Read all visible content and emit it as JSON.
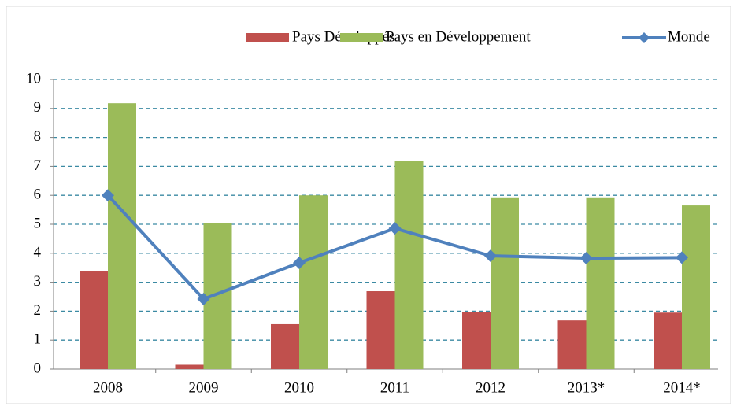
{
  "chart_data": {
    "type": "bar",
    "categories": [
      "2008",
      "2009",
      "2010",
      "2011",
      "2012",
      "2013*",
      "2014*"
    ],
    "series": [
      {
        "name": "Pays Développés",
        "color": "#c0504d",
        "type": "bar",
        "values": [
          3.37,
          0.15,
          1.55,
          2.69,
          1.96,
          1.68,
          1.95
        ]
      },
      {
        "name": "Pays en Développement",
        "color": "#9bbb59",
        "type": "bar",
        "values": [
          9.18,
          5.05,
          6.0,
          7.2,
          5.93,
          5.93,
          5.65
        ]
      },
      {
        "name": "Monde",
        "color": "#4f81bd",
        "type": "line",
        "values": [
          6.0,
          2.42,
          3.67,
          4.86,
          3.91,
          3.83,
          3.85
        ]
      }
    ],
    "ylim": [
      0,
      10
    ],
    "yticks": [
      0,
      1,
      2,
      3,
      4,
      5,
      6,
      7,
      8,
      9,
      10
    ],
    "grid": true,
    "legend": "top"
  }
}
